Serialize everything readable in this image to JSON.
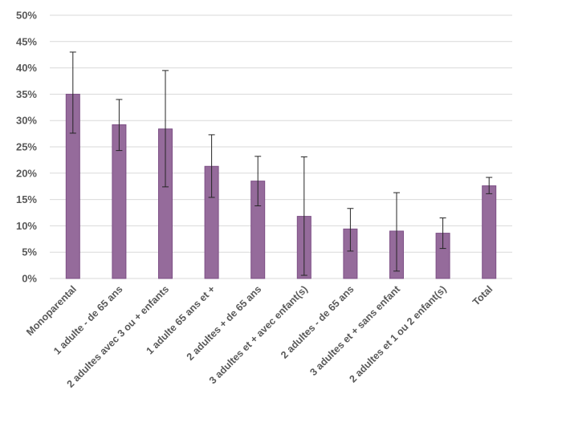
{
  "chart_data": {
    "type": "bar",
    "title": "",
    "xlabel": "",
    "ylabel": "",
    "ylim": [
      0,
      50
    ],
    "yticks": [
      "0%",
      "5%",
      "10%",
      "15%",
      "20%",
      "25%",
      "30%",
      "35%",
      "40%",
      "45%",
      "50%"
    ],
    "grid": true,
    "legend": "none",
    "bar_color": "#956b9b",
    "bar_edge_color": "#7d4f86",
    "categories": [
      "Monoparental",
      "1 adulte - de 65 ans",
      "2 adultes avec 3 ou + enfants",
      "1 adulte 65 ans et +",
      "2 adultes + de 65 ans",
      "3 adultes et + avec enfant(s)",
      "2 adultes - de 65 ans",
      "3 adultes et + sans enfant",
      "2 adultes et 1 ou 2 enfant(s)",
      "Total"
    ],
    "values": [
      35.0,
      29.2,
      28.4,
      21.3,
      18.5,
      11.8,
      9.4,
      9.0,
      8.6,
      17.6
    ],
    "error_low": [
      27.6,
      24.3,
      17.4,
      15.4,
      13.8,
      0.6,
      5.2,
      1.4,
      5.7,
      16.1
    ],
    "error_high": [
      43.0,
      34.0,
      39.5,
      27.3,
      23.2,
      23.1,
      13.3,
      16.3,
      11.5,
      19.2
    ]
  }
}
